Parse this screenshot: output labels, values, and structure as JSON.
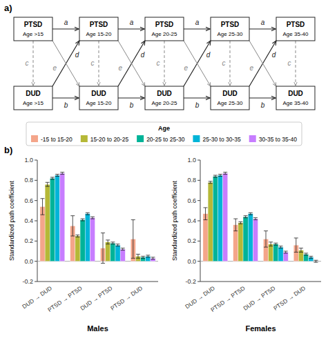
{
  "chart_data": [
    {
      "type": "path_diagram",
      "title": "a)",
      "rows": [
        "PTSD",
        "DUD"
      ],
      "categories": [
        "Age >15",
        "Age 15-20",
        "Age 20-25",
        "Age 25-30",
        "Age 35-40"
      ],
      "path_labels": [
        "a",
        "b",
        "c",
        "d",
        "e"
      ]
    },
    {
      "type": "bar",
      "title": "b)",
      "xlabel": "Males",
      "ylabel": "Standardized path coefficient",
      "categories": [
        "DUD → DUD",
        "PTSD → PTSD",
        "DUD → PTSD",
        "PTSD → DUD"
      ],
      "ylim": [
        -0.2,
        1.0
      ],
      "yticks": [
        -0.2,
        {
          "value": 0,
          "label": "0.0"
        },
        0.2,
        0.4,
        0.6,
        0.8,
        {
          "value": 1,
          "label": "1.0"
        }
      ],
      "grid": false,
      "legend": "top",
      "legend_title": "Age",
      "series": [
        {
          "name": "-15 to 15-20",
          "color": "#f4a58a",
          "values": [
            0.54,
            0.35,
            0.13,
            0.22
          ],
          "errors": [
            0.08,
            0.1,
            0.15,
            0.19
          ]
        },
        {
          "name": "15-20 to 20-25",
          "color": "#b5b837",
          "values": [
            0.76,
            0.25,
            0.19,
            0.05
          ],
          "errors": [
            0.02,
            0.01,
            0.02,
            0.02
          ]
        },
        {
          "name": "20-25 to 25-30",
          "color": "#00b398",
          "values": [
            0.82,
            0.41,
            0.18,
            0.04
          ],
          "errors": [
            0.01,
            0.01,
            0.01,
            0.01
          ]
        },
        {
          "name": "25-30 to 30-35",
          "color": "#00b4d8",
          "values": [
            0.85,
            0.47,
            0.16,
            0.05
          ],
          "errors": [
            0.01,
            0.01,
            0.01,
            0.01
          ]
        },
        {
          "name": "30-35 to 35-40",
          "color": "#c77dff",
          "values": [
            0.87,
            0.43,
            0.12,
            0.03
          ],
          "errors": [
            0.01,
            0.01,
            0.01,
            0.01
          ]
        }
      ]
    },
    {
      "type": "bar",
      "xlabel": "Females",
      "ylabel": "Standardized path coefficient",
      "categories": [
        "DUD → DUD",
        "PTSD → PTSD",
        "DUD → PTSD",
        "PTSD → DUD"
      ],
      "ylim": [
        -0.2,
        1.0
      ],
      "yticks": [
        -0.2,
        {
          "value": 0,
          "label": "0.0"
        },
        0.2,
        0.4,
        0.6,
        0.8,
        {
          "value": 1,
          "label": "1.0"
        }
      ],
      "grid": false,
      "series": [
        {
          "color": "#f4a58a",
          "values": [
            0.47,
            0.36,
            0.22,
            0.16
          ],
          "errors": [
            0.06,
            0.06,
            0.08,
            0.07
          ]
        },
        {
          "color": "#b5b837",
          "values": [
            0.78,
            0.38,
            0.17,
            0.11
          ],
          "errors": [
            0.01,
            0.01,
            0.02,
            0.02
          ]
        },
        {
          "color": "#00b398",
          "values": [
            0.84,
            0.44,
            0.17,
            0.07
          ],
          "errors": [
            0.01,
            0.01,
            0.01,
            0.01
          ]
        },
        {
          "color": "#00b4d8",
          "values": [
            0.85,
            0.47,
            0.14,
            0.04
          ],
          "errors": [
            0.01,
            0.01,
            0.01,
            0.01
          ]
        },
        {
          "color": "#c77dff",
          "values": [
            0.87,
            0.42,
            0.09,
            0.0
          ],
          "errors": [
            0.01,
            0.01,
            0.01,
            0.01
          ]
        }
      ]
    }
  ]
}
